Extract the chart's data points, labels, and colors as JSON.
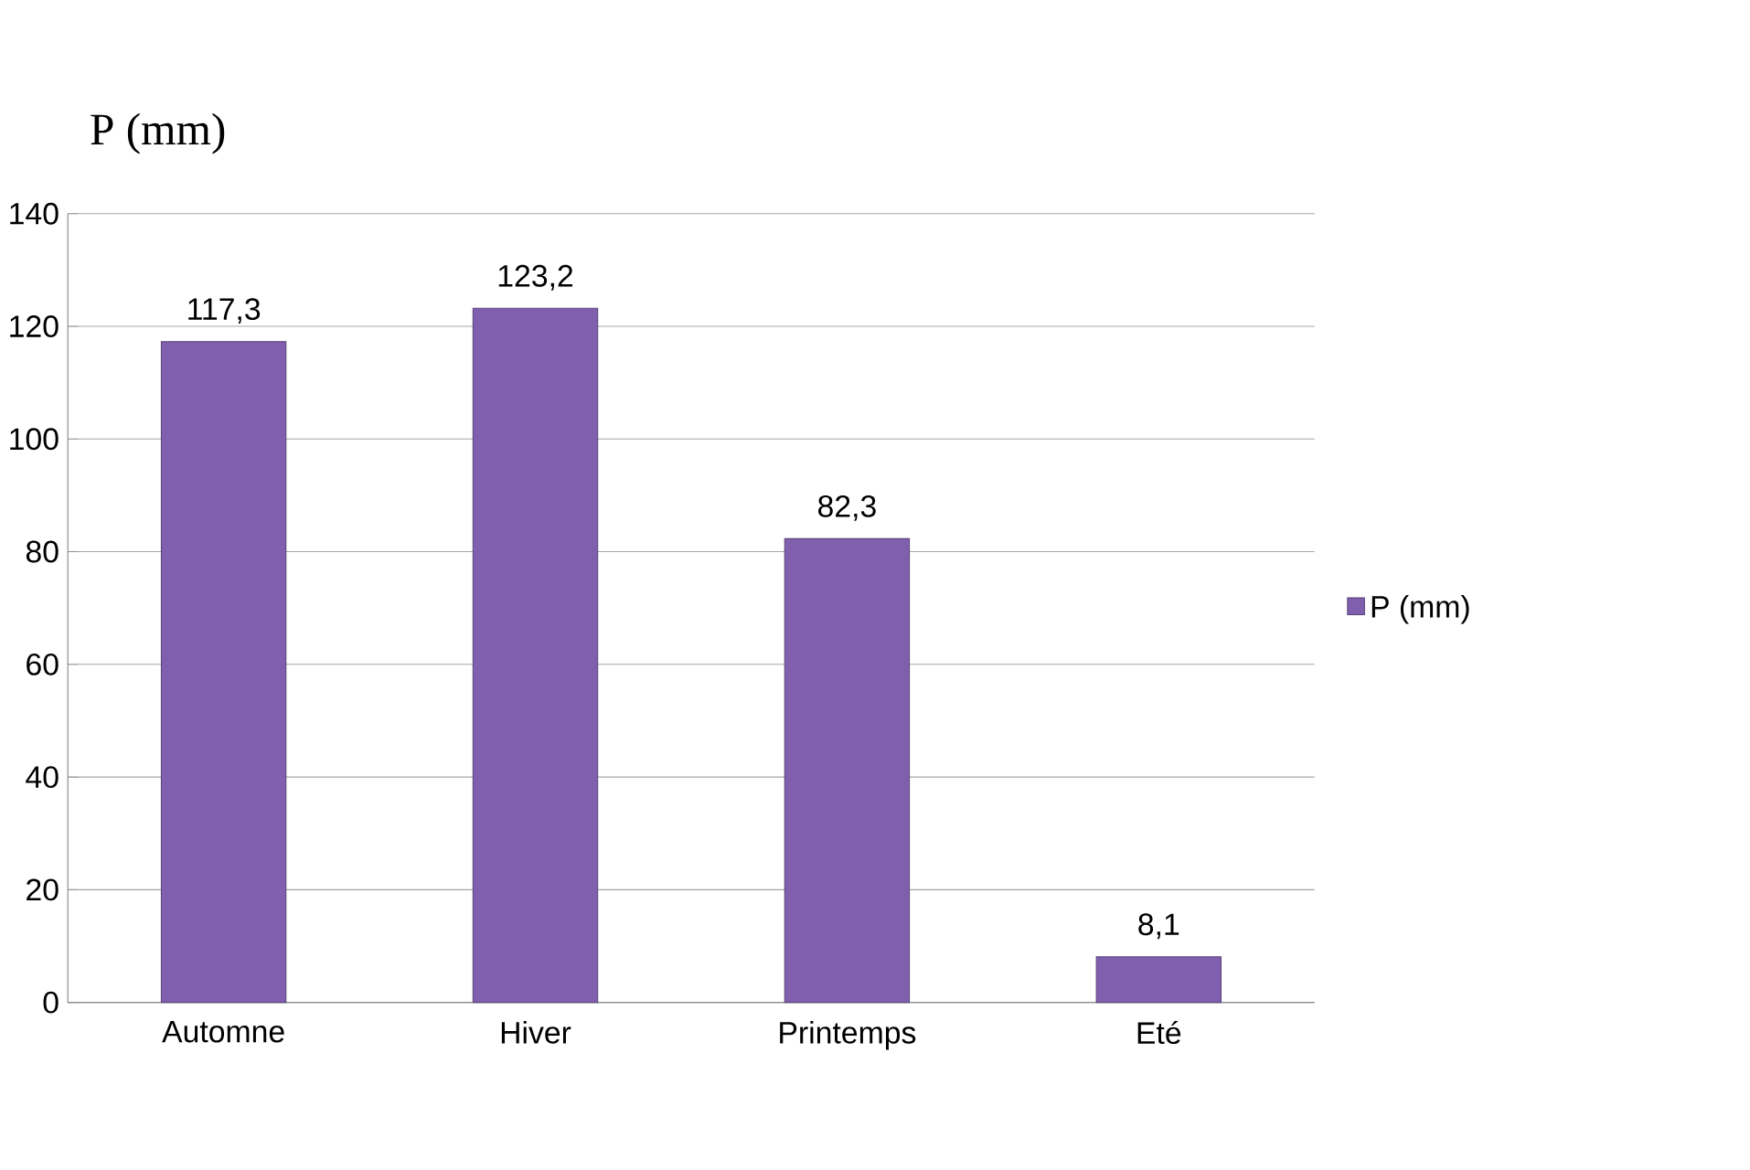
{
  "chart_data": {
    "type": "bar",
    "title": "P (mm)",
    "categories": [
      "Automne",
      "Hiver",
      "Printemps",
      "Eté"
    ],
    "series": [
      {
        "name": "P (mm)",
        "color": "#7f5fae",
        "values": [
          117.3,
          123.2,
          82.3,
          8.1
        ],
        "value_labels": [
          "117,3",
          "123,2",
          "82,3",
          "8,1"
        ]
      }
    ],
    "ylim": [
      0,
      140
    ],
    "yticks": [
      0,
      20,
      40,
      60,
      80,
      100,
      120,
      140
    ],
    "grid": "y",
    "legend": "right"
  }
}
